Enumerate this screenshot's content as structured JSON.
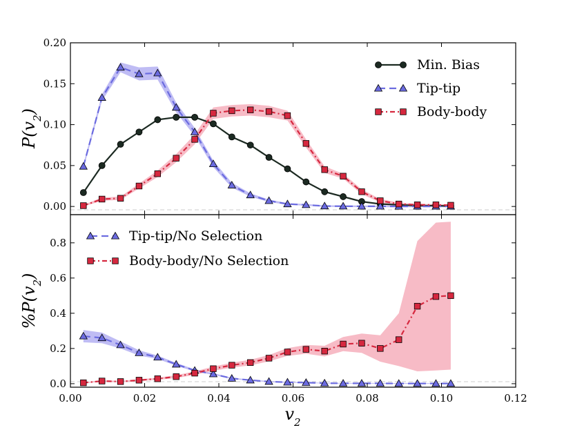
{
  "chart_data": [
    {
      "type": "line",
      "panel": "top",
      "ylabel": "P(v2)",
      "ylim": [
        -0.01,
        0.2
      ],
      "xlim": [
        0.0,
        0.12
      ],
      "yticks": [
        "0.00",
        "0.05",
        "0.10",
        "0.15",
        "0.20"
      ],
      "legend_position": "top-right",
      "x": [
        0.0035,
        0.0085,
        0.0135,
        0.0185,
        0.0235,
        0.0285,
        0.0335,
        0.0385,
        0.0435,
        0.0485,
        0.0535,
        0.0585,
        0.0635,
        0.0685,
        0.0735,
        0.0785,
        0.0835,
        0.0885,
        0.0935,
        0.0985,
        0.1025
      ],
      "series": [
        {
          "name": "Min. Bias",
          "color": "#1c2a22",
          "marker": "circle",
          "linestyle": "solid",
          "values": [
            0.017,
            0.05,
            0.076,
            0.091,
            0.106,
            0.109,
            0.109,
            0.101,
            0.085,
            0.075,
            0.06,
            0.046,
            0.03,
            0.018,
            0.012,
            0.006,
            0.003,
            0.002,
            0.001,
            0.001,
            0.0005
          ],
          "band": [
            0.001,
            0.001,
            0.001,
            0.001,
            0.001,
            0.001,
            0.001,
            0.001,
            0.001,
            0.001,
            0.001,
            0.001,
            0.001,
            0.001,
            0.001,
            0.001,
            0.001,
            0.001,
            0.001,
            0.001,
            0.001
          ]
        },
        {
          "name": "Tip-tip",
          "color": "#6b6be0",
          "band_color": "#a9a6f0",
          "marker": "triangle",
          "linestyle": "dashed",
          "values": [
            0.049,
            0.133,
            0.17,
            0.162,
            0.163,
            0.121,
            0.091,
            0.052,
            0.026,
            0.014,
            0.007,
            0.003,
            0.002,
            0.0005,
            0.0003,
            0.0002,
            0.0002,
            0.0001,
            0.0001,
            0.0001,
            0.0001
          ],
          "band": [
            0.003,
            0.004,
            0.006,
            0.008,
            0.008,
            0.006,
            0.005,
            0.004,
            0.003,
            0.002,
            0.0015,
            0.001,
            0.001,
            0.001,
            0.001,
            0.001,
            0.001,
            0.001,
            0.001,
            0.001,
            0.001
          ]
        },
        {
          "name": "Body-body",
          "color": "#d6283f",
          "band_color": "#f4a4b3",
          "marker": "square",
          "linestyle": "dashdot",
          "values": [
            0.001,
            0.009,
            0.01,
            0.025,
            0.04,
            0.059,
            0.082,
            0.114,
            0.117,
            0.118,
            0.116,
            0.111,
            0.077,
            0.045,
            0.037,
            0.018,
            0.007,
            0.003,
            0.002,
            0.002,
            0.0015
          ],
          "band": [
            0.001,
            0.002,
            0.002,
            0.003,
            0.004,
            0.005,
            0.006,
            0.007,
            0.007,
            0.007,
            0.007,
            0.006,
            0.005,
            0.004,
            0.003,
            0.003,
            0.002,
            0.002,
            0.001,
            0.001,
            0.001
          ]
        }
      ]
    },
    {
      "type": "line",
      "panel": "bottom",
      "ylabel": "%P(v2)",
      "xlabel": "v2",
      "ylim": [
        -0.02,
        0.96
      ],
      "xlim": [
        0.0,
        0.12
      ],
      "yticks": [
        "0.0",
        "0.2",
        "0.4",
        "0.6",
        "0.8"
      ],
      "xticks": [
        "0.00",
        "0.02",
        "0.04",
        "0.06",
        "0.08",
        "0.10",
        "0.12"
      ],
      "legend_position": "top-left",
      "x": [
        0.0035,
        0.0085,
        0.0135,
        0.0185,
        0.0235,
        0.0285,
        0.0335,
        0.0385,
        0.0435,
        0.0485,
        0.0535,
        0.0585,
        0.0635,
        0.0685,
        0.0735,
        0.0785,
        0.0835,
        0.0885,
        0.0935,
        0.0985,
        0.1025
      ],
      "series": [
        {
          "name": "Tip-tip/No Selection",
          "color": "#6b6be0",
          "band_color": "#a9a6f0",
          "marker": "triangle",
          "linestyle": "dashed",
          "values": [
            0.27,
            0.26,
            0.22,
            0.175,
            0.15,
            0.11,
            0.075,
            0.055,
            0.03,
            0.02,
            0.012,
            0.008,
            0.006,
            0.003,
            0.002,
            0.002,
            0.002,
            0.001,
            0.001,
            0.001,
            0.001
          ],
          "band": [
            0.035,
            0.03,
            0.02,
            0.015,
            0.01,
            0.008,
            0.006,
            0.005,
            0.004,
            0.003,
            0.003,
            0.003,
            0.002,
            0.002,
            0.002,
            0.002,
            0.002,
            0.002,
            0.002,
            0.002,
            0.002
          ]
        },
        {
          "name": "Body-body/No Selection",
          "color": "#d6283f",
          "band_color": "#f4a4b3",
          "marker": "square",
          "linestyle": "dashdot",
          "values": [
            0.005,
            0.015,
            0.012,
            0.02,
            0.028,
            0.04,
            0.06,
            0.085,
            0.105,
            0.12,
            0.145,
            0.18,
            0.195,
            0.185,
            0.225,
            0.23,
            0.2,
            0.25,
            0.44,
            0.495,
            0.5
          ],
          "band": [
            0.003,
            0.004,
            0.004,
            0.005,
            0.006,
            0.008,
            0.01,
            0.012,
            0.014,
            0.016,
            0.018,
            0.022,
            0.025,
            0.03,
            0.04,
            0.055,
            0.075,
            0.15,
            0.37,
            0.42,
            0.42
          ]
        }
      ]
    }
  ]
}
